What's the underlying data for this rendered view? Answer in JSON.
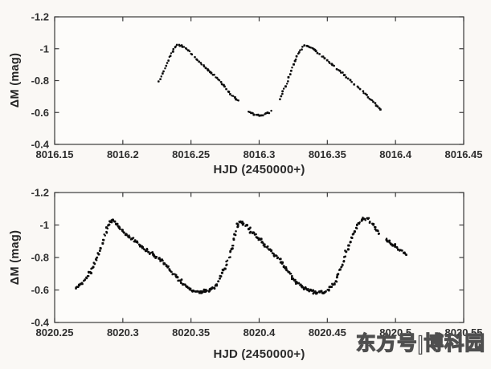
{
  "figure": {
    "watermark": "东方号|博科园"
  },
  "chart_data": [
    {
      "id": "top-light-curve",
      "type": "scatter",
      "title": "",
      "xlabel": "HJD (2450000+)",
      "ylabel": "ΔM (mag)",
      "xlim": [
        8016.15,
        8016.45
      ],
      "ylim_top_to_bottom": [
        -1.2,
        -0.4
      ],
      "grid": false,
      "legend": null,
      "marker_color": "#0d0d0d",
      "axis_color": "#3a3a3a",
      "plot_bg": "#fdfcfa",
      "xticks": {
        "values": [
          8016.15,
          8016.2,
          8016.25,
          8016.3,
          8016.35,
          8016.4,
          8016.45
        ],
        "labels": [
          "8016.15",
          "8016.2",
          "8016.25",
          "8016.3",
          "8016.35",
          "8016.4",
          "8016.45"
        ]
      },
      "yticks": {
        "values": [
          -1.2,
          -1.0,
          -0.8,
          -0.6,
          -0.4
        ],
        "labels": [
          "-1.2",
          "-1",
          "-0.8",
          "-0.6",
          "-0.4"
        ]
      },
      "series": [
        {
          "name": "cycle-1-rise-and-decline",
          "points": [
            [
              8016.2265,
              -0.795
            ],
            [
              8016.229,
              -0.845
            ],
            [
              8016.2315,
              -0.895
            ],
            [
              8016.234,
              -0.945
            ],
            [
              8016.2365,
              -0.985
            ],
            [
              8016.239,
              -1.015
            ],
            [
              8016.241,
              -1.025
            ],
            [
              8016.243,
              -1.02
            ],
            [
              8016.246,
              -1.005
            ],
            [
              8016.249,
              -0.98
            ],
            [
              8016.252,
              -0.955
            ],
            [
              8016.256,
              -0.92
            ],
            [
              8016.26,
              -0.885
            ],
            [
              8016.264,
              -0.855
            ],
            [
              8016.268,
              -0.825
            ],
            [
              8016.27,
              -0.805
            ],
            [
              8016.272,
              -0.79
            ],
            [
              8016.275,
              -0.76
            ],
            [
              8016.278,
              -0.725
            ],
            [
              8016.281,
              -0.7
            ],
            [
              8016.284,
              -0.678
            ],
            [
              8016.286,
              -0.668
            ]
          ]
        },
        {
          "name": "minimum-between-cycles",
          "points": [
            [
              8016.292,
              -0.606
            ],
            [
              8016.295,
              -0.592
            ],
            [
              8016.298,
              -0.583
            ],
            [
              8016.301,
              -0.58
            ],
            [
              8016.304,
              -0.586
            ],
            [
              8016.307,
              -0.6
            ],
            [
              8016.31,
              -0.622
            ]
          ]
        },
        {
          "name": "cycle-2-rise-and-decline",
          "points": [
            [
              8016.315,
              -0.685
            ],
            [
              8016.3175,
              -0.73
            ],
            [
              8016.321,
              -0.8
            ],
            [
              8016.3235,
              -0.86
            ],
            [
              8016.326,
              -0.92
            ],
            [
              8016.3285,
              -0.965
            ],
            [
              8016.331,
              -1.0
            ],
            [
              8016.333,
              -1.018
            ],
            [
              8016.335,
              -1.022
            ],
            [
              8016.337,
              -1.012
            ],
            [
              8016.34,
              -0.995
            ],
            [
              8016.344,
              -0.968
            ],
            [
              8016.348,
              -0.94
            ],
            [
              8016.353,
              -0.905
            ],
            [
              8016.358,
              -0.868
            ],
            [
              8016.363,
              -0.832
            ],
            [
              8016.368,
              -0.795
            ],
            [
              8016.373,
              -0.755
            ],
            [
              8016.378,
              -0.715
            ],
            [
              8016.383,
              -0.672
            ],
            [
              8016.387,
              -0.638
            ],
            [
              8016.39,
              -0.615
            ]
          ]
        }
      ]
    },
    {
      "id": "bottom-light-curve",
      "type": "scatter",
      "title": "",
      "xlabel": "HJD (2450000+)",
      "ylabel": "ΔM (mag)",
      "xlim": [
        8020.25,
        8020.55
      ],
      "ylim_top_to_bottom": [
        -1.2,
        -0.4
      ],
      "grid": false,
      "legend": null,
      "marker_color": "#0d0d0d",
      "axis_color": "#3a3a3a",
      "plot_bg": "#fdfcfa",
      "xticks": {
        "values": [
          8020.25,
          8020.3,
          8020.35,
          8020.4,
          8020.45,
          8020.5,
          8020.55
        ],
        "labels": [
          "8020.25",
          "8020.3",
          "8020.35",
          "8020.4",
          "8020.45",
          "8020.5",
          "8020.55"
        ]
      },
      "yticks": {
        "values": [
          -1.2,
          -1.0,
          -0.8,
          -0.6,
          -0.4
        ],
        "labels": [
          "-1.2",
          "-1",
          "-0.8",
          "-0.6",
          "-0.4"
        ]
      },
      "series": [
        {
          "name": "three-pulsation-cycles",
          "points": [
            [
              8020.266,
              -0.615
            ],
            [
              8020.269,
              -0.638
            ],
            [
              8020.272,
              -0.668
            ],
            [
              8020.275,
              -0.7
            ],
            [
              8020.278,
              -0.745
            ],
            [
              8020.281,
              -0.8
            ],
            [
              8020.284,
              -0.862
            ],
            [
              8020.2862,
              -0.912
            ],
            [
              8020.288,
              -0.955
            ],
            [
              8020.29,
              -1.0
            ],
            [
              8020.2915,
              -1.025
            ],
            [
              8020.293,
              -1.03
            ],
            [
              8020.295,
              -1.012
            ],
            [
              8020.2975,
              -0.985
            ],
            [
              8020.3,
              -0.958
            ],
            [
              8020.304,
              -0.93
            ],
            [
              8020.308,
              -0.905
            ],
            [
              8020.312,
              -0.878
            ],
            [
              8020.316,
              -0.852
            ],
            [
              8020.32,
              -0.83
            ],
            [
              8020.325,
              -0.8
            ],
            [
              8020.33,
              -0.768
            ],
            [
              8020.334,
              -0.73
            ],
            [
              8020.338,
              -0.692
            ],
            [
              8020.342,
              -0.655
            ],
            [
              8020.346,
              -0.622
            ],
            [
              8020.35,
              -0.6
            ],
            [
              8020.354,
              -0.588
            ],
            [
              8020.358,
              -0.585
            ],
            [
              8020.362,
              -0.592
            ],
            [
              8020.366,
              -0.61
            ],
            [
              8020.369,
              -0.638
            ],
            [
              8020.372,
              -0.68
            ],
            [
              8020.375,
              -0.735
            ],
            [
              8020.378,
              -0.805
            ],
            [
              8020.3805,
              -0.875
            ],
            [
              8020.3825,
              -0.94
            ],
            [
              8020.384,
              -0.99
            ],
            [
              8020.3855,
              -1.015
            ],
            [
              8020.3875,
              -1.018
            ],
            [
              8020.39,
              -1.0
            ],
            [
              8020.393,
              -0.972
            ],
            [
              8020.397,
              -0.94
            ],
            [
              8020.401,
              -0.905
            ],
            [
              8020.405,
              -0.872
            ],
            [
              8020.41,
              -0.83
            ],
            [
              8020.415,
              -0.785
            ],
            [
              8020.42,
              -0.73
            ],
            [
              8020.425,
              -0.672
            ],
            [
              8020.43,
              -0.63
            ],
            [
              8020.435,
              -0.605
            ],
            [
              8020.44,
              -0.59
            ],
            [
              8020.445,
              -0.585
            ],
            [
              8020.449,
              -0.592
            ],
            [
              8020.453,
              -0.62
            ],
            [
              8020.456,
              -0.66
            ],
            [
              8020.459,
              -0.718
            ],
            [
              8020.462,
              -0.782
            ],
            [
              8020.465,
              -0.855
            ],
            [
              8020.468,
              -0.925
            ],
            [
              8020.471,
              -0.98
            ],
            [
              8020.474,
              -1.02
            ],
            [
              8020.477,
              -1.038
            ],
            [
              8020.48,
              -1.035
            ],
            [
              8020.483,
              -1.01
            ],
            [
              8020.486,
              -0.968
            ],
            [
              8020.489,
              -0.938
            ]
          ]
        },
        {
          "name": "final-decline-tail",
          "points": [
            [
              8020.4935,
              -0.908
            ],
            [
              8020.497,
              -0.885
            ],
            [
              8020.501,
              -0.858
            ],
            [
              8020.505,
              -0.832
            ],
            [
              8020.508,
              -0.812
            ]
          ]
        }
      ]
    }
  ]
}
